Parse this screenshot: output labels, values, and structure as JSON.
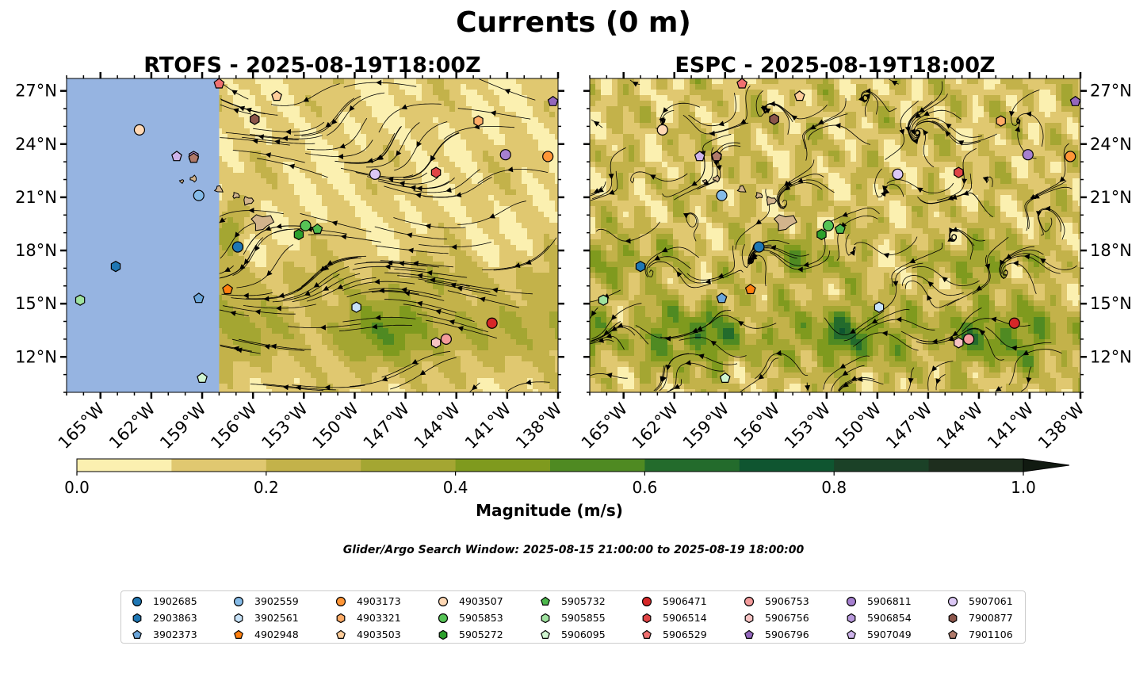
{
  "title": "Currents (0 m)",
  "search_window": "Glider/Argo Search Window: 2025-08-15 21:00:00 to 2025-08-19 18:00:00",
  "colors": {
    "land": "#d2b48c",
    "nodata": "#96b4e1",
    "streamline": "#000000",
    "marker_edge": "#000000"
  },
  "chart_data": {
    "type": "heatmap",
    "panels": [
      {
        "id": "rtofs",
        "title": "RTOFS - 2025-08-19T18:00Z",
        "lon_range": [
          -167,
          -138
        ],
        "lat_range": [
          10,
          27.7
        ],
        "nodata_west_of_lon": -158,
        "y_ticks_side": "left"
      },
      {
        "id": "espc",
        "title": "ESPC - 2025-08-19T18:00Z",
        "lon_range": [
          -167,
          -138
        ],
        "lat_range": [
          10,
          27.7
        ],
        "nodata_west_of_lon": null,
        "y_ticks_side": "right"
      }
    ],
    "x_ticks": [
      {
        "value": -165,
        "label": "165°W"
      },
      {
        "value": -162,
        "label": "162°W"
      },
      {
        "value": -159,
        "label": "159°W"
      },
      {
        "value": -156,
        "label": "156°W"
      },
      {
        "value": -153,
        "label": "153°W"
      },
      {
        "value": -150,
        "label": "150°W"
      },
      {
        "value": -147,
        "label": "147°W"
      },
      {
        "value": -144,
        "label": "144°W"
      },
      {
        "value": -141,
        "label": "141°W"
      },
      {
        "value": -138,
        "label": "138°W"
      }
    ],
    "y_ticks": [
      {
        "value": 12,
        "label": "12°N"
      },
      {
        "value": 15,
        "label": "15°N"
      },
      {
        "value": 18,
        "label": "18°N"
      },
      {
        "value": 21,
        "label": "21°N"
      },
      {
        "value": 24,
        "label": "24°N"
      },
      {
        "value": 27,
        "label": "27°N"
      }
    ],
    "colorbar": {
      "label": "Magnitude (m/s)",
      "range": [
        0.0,
        1.0
      ],
      "extend": "max",
      "bounds": [
        0.0,
        0.1,
        0.2,
        0.3,
        0.4,
        0.5,
        0.6,
        0.7,
        0.8,
        0.9,
        1.0
      ],
      "colors": [
        "#fbf0b0",
        "#e0c870",
        "#c3b24a",
        "#a4a632",
        "#7f9a1e",
        "#4f8a22",
        "#236b2c",
        "#0f5530",
        "#1b4127",
        "#1e2e1e"
      ],
      "extend_color": "#111a11",
      "ticks": [
        {
          "value": 0.0,
          "label": "0.0"
        },
        {
          "value": 0.2,
          "label": "0.2"
        },
        {
          "value": 0.4,
          "label": "0.4"
        },
        {
          "value": 0.6,
          "label": "0.6"
        },
        {
          "value": 0.8,
          "label": "0.8"
        },
        {
          "value": 1.0,
          "label": "1.0"
        }
      ]
    },
    "islands": [
      {
        "name": "Hawaii",
        "lon": -155.5,
        "lat": 19.6,
        "size": 1.0
      },
      {
        "name": "Maui",
        "lon": -156.3,
        "lat": 20.8,
        "size": 0.5
      },
      {
        "name": "Molokai",
        "lon": -157.0,
        "lat": 21.1,
        "size": 0.35
      },
      {
        "name": "Oahu",
        "lon": -158.0,
        "lat": 21.45,
        "size": 0.4
      },
      {
        "name": "Kauai",
        "lon": -159.5,
        "lat": 22.05,
        "size": 0.35
      },
      {
        "name": "Niihau",
        "lon": -160.2,
        "lat": 21.9,
        "size": 0.2
      }
    ],
    "floats": [
      {
        "id": "1902685",
        "marker": "circle",
        "color": "#1f77b4",
        "rtofs": [
          -156.9,
          18.2
        ],
        "espc": [
          -157.0,
          18.2
        ]
      },
      {
        "id": "2903863",
        "marker": "hexagon",
        "color": "#1f77b4",
        "rtofs": [
          -164.1,
          17.1
        ],
        "espc": [
          -164.0,
          17.1
        ]
      },
      {
        "id": "3902373",
        "marker": "pentagon",
        "color": "#6ba5d9",
        "rtofs": [
          -159.2,
          15.3
        ],
        "espc": [
          -159.2,
          15.3
        ]
      },
      {
        "id": "3902559",
        "marker": "circle",
        "color": "#85bbe8",
        "rtofs": [
          -159.2,
          21.1
        ],
        "espc": [
          -159.2,
          21.1
        ]
      },
      {
        "id": "3902561",
        "marker": "hexagon",
        "color": "#c6e2f8",
        "rtofs": [
          -149.9,
          14.8
        ],
        "espc": [
          -149.9,
          14.8
        ]
      },
      {
        "id": "4902948",
        "marker": "pentagon",
        "color": "#ff7f0e",
        "rtofs": [
          -157.5,
          15.8
        ],
        "espc": [
          -157.5,
          15.8
        ]
      },
      {
        "id": "4903173",
        "marker": "circle",
        "color": "#ff9637",
        "rtofs": [
          -138.6,
          23.3
        ],
        "espc": [
          -138.6,
          23.3
        ]
      },
      {
        "id": "4903321",
        "marker": "hexagon",
        "color": "#ffab66",
        "rtofs": [
          -142.7,
          25.3
        ],
        "espc": [
          -142.7,
          25.3
        ]
      },
      {
        "id": "4903503",
        "marker": "pentagon",
        "color": "#ffcd9a",
        "rtofs": [
          -154.6,
          26.7
        ],
        "espc": [
          -154.6,
          26.7
        ]
      },
      {
        "id": "4903507",
        "marker": "circle",
        "color": "#ffd8b4",
        "rtofs": [
          -162.7,
          24.8
        ],
        "espc": [
          -162.7,
          24.8
        ]
      },
      {
        "id": "5905853",
        "marker": "circle",
        "color": "#56c456",
        "rtofs": [
          -152.9,
          19.4
        ],
        "espc": [
          -152.9,
          19.4
        ]
      },
      {
        "id": "5905272",
        "marker": "hexagon",
        "color": "#2ca02c",
        "rtofs": [
          -153.3,
          18.9
        ],
        "espc": [
          -153.3,
          18.9
        ]
      },
      {
        "id": "5905732",
        "marker": "pentagon",
        "color": "#4cb84c",
        "rtofs": [
          -152.2,
          19.2
        ],
        "espc": [
          -152.2,
          19.2
        ]
      },
      {
        "id": "5905855",
        "marker": "hexagon",
        "color": "#9fe29f",
        "rtofs": [
          -166.2,
          15.2
        ],
        "espc": [
          -166.2,
          15.2
        ]
      },
      {
        "id": "5906095",
        "marker": "pentagon",
        "color": "#d0f5d0",
        "rtofs": [
          -159.0,
          10.8
        ],
        "espc": [
          -159.0,
          10.8
        ]
      },
      {
        "id": "5906471",
        "marker": "circle",
        "color": "#d62728",
        "rtofs": [
          -141.9,
          13.9
        ],
        "espc": [
          -141.9,
          13.9
        ]
      },
      {
        "id": "5906514",
        "marker": "hexagon",
        "color": "#e04546",
        "rtofs": [
          -145.2,
          22.4
        ],
        "espc": [
          -145.2,
          22.4
        ]
      },
      {
        "id": "5906529",
        "marker": "pentagon",
        "color": "#f07070",
        "rtofs": [
          -158.0,
          27.4
        ],
        "espc": [
          -158.0,
          27.4
        ]
      },
      {
        "id": "5906753",
        "marker": "circle",
        "color": "#f39b9b",
        "rtofs": [
          -144.6,
          13.0
        ],
        "espc": [
          -144.6,
          13.0
        ]
      },
      {
        "id": "5906756",
        "marker": "hexagon",
        "color": "#f8c4c4",
        "rtofs": [
          -145.2,
          12.8
        ],
        "espc": [
          -145.2,
          12.8
        ]
      },
      {
        "id": "5906796",
        "marker": "pentagon",
        "color": "#9467bd",
        "rtofs": [
          -138.3,
          26.4
        ],
        "espc": [
          -138.3,
          26.4
        ]
      },
      {
        "id": "5906811",
        "marker": "circle",
        "color": "#a680d0",
        "rtofs": [
          -141.1,
          23.4
        ],
        "espc": [
          -141.1,
          23.4
        ]
      },
      {
        "id": "5906854",
        "marker": "hexagon",
        "color": "#b899dc",
        "rtofs": [
          -159.5,
          23.3
        ],
        "espc": [
          -159.5,
          23.3
        ]
      },
      {
        "id": "5907049",
        "marker": "pentagon",
        "color": "#cdb3ea",
        "rtofs": [
          -160.5,
          23.3
        ],
        "espc": [
          -160.5,
          23.3
        ]
      },
      {
        "id": "5907061",
        "marker": "circle",
        "color": "#dcc8f5",
        "rtofs": [
          -148.8,
          22.3
        ],
        "espc": [
          -148.8,
          22.3
        ]
      },
      {
        "id": "7900877",
        "marker": "hexagon",
        "color": "#8c564b",
        "rtofs": [
          -155.9,
          25.4
        ],
        "espc": [
          -156.1,
          25.4
        ]
      },
      {
        "id": "7901106",
        "marker": "pentagon",
        "color": "#b07a6a",
        "rtofs": [
          -159.5,
          23.2
        ],
        "espc": [
          -159.5,
          23.3
        ]
      }
    ]
  }
}
